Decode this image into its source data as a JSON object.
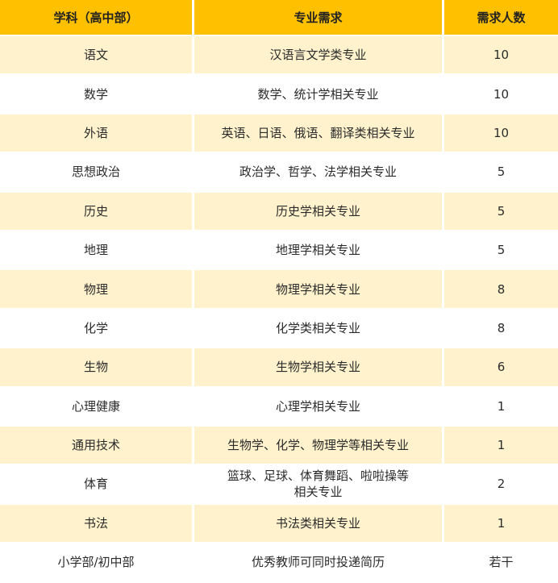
{
  "colors": {
    "header": "#FFC000",
    "band": "#FFF2CC",
    "white": "#FFFFFF"
  },
  "headers": [
    "学科（高中部）",
    "专业需求",
    "需求人数"
  ],
  "rows": [
    {
      "subject": "语文",
      "major": "汉语言文学类专业",
      "count": "10"
    },
    {
      "subject": "数学",
      "major": "数学、统计学相关专业",
      "count": "10"
    },
    {
      "subject": "外语",
      "major": "英语、日语、俄语、翻译类相关专业",
      "count": "10"
    },
    {
      "subject": "思想政治",
      "major": "政治学、哲学、法学相关专业",
      "count": "5"
    },
    {
      "subject": "历史",
      "major": "历史学相关专业",
      "count": "5"
    },
    {
      "subject": "地理",
      "major": "地理学相关专业",
      "count": "5"
    },
    {
      "subject": "物理",
      "major": "物理学相关专业",
      "count": "8"
    },
    {
      "subject": "化学",
      "major": "化学类相关专业",
      "count": "8"
    },
    {
      "subject": "生物",
      "major": "生物学相关专业",
      "count": "6"
    },
    {
      "subject": "心理健康",
      "major": "心理学相关专业",
      "count": "1"
    },
    {
      "subject": "通用技术",
      "major": "生物学、化学、物理学等相关专业",
      "count": "1"
    },
    {
      "subject": "体育",
      "major": "篮球、足球、体育舞蹈、啦啦操等相关专业",
      "count": "2"
    },
    {
      "subject": "书法",
      "major": "书法类相关专业",
      "count": "1"
    },
    {
      "subject": "小学部/初中部",
      "major": "优秀教师可同时投递简历",
      "count": "若干"
    }
  ]
}
